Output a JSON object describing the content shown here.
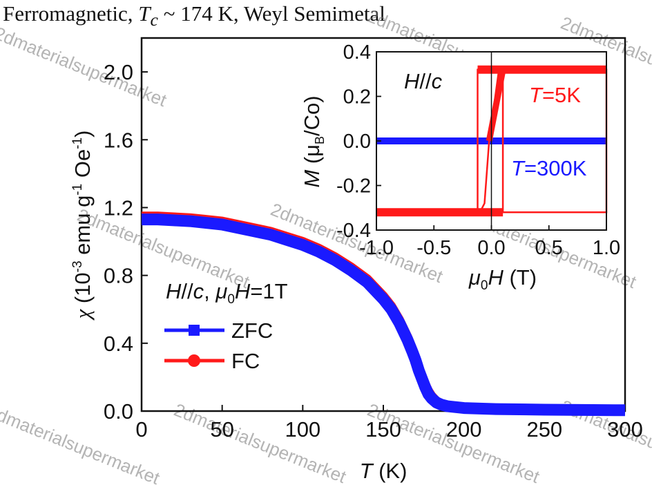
{
  "caption": {
    "prefix": "Ferromagnetic, ",
    "tc_symbol": "T",
    "tc_sub": "c",
    "suffix": " ~ 174 K, Weyl Semimetal"
  },
  "watermark": "2dmaterialsupermarket",
  "colors": {
    "zfc": "#1a1aff",
    "fc": "#ff1a1a",
    "axis": "#111111"
  },
  "chart_data": [
    {
      "type": "line",
      "xlabel": {
        "symbol": "T",
        "unit": " (K)"
      },
      "ylabel": {
        "symbol": "χ",
        "text_a": " (10",
        "exp_a": "-3",
        "text_b": " emu g",
        "exp_b": "-1",
        "text_c": " Oe",
        "exp_c": "-1",
        "text_d": ")"
      },
      "xlim": [
        0,
        300
      ],
      "ylim": [
        0,
        2.2
      ],
      "xticks": [
        "0",
        "50",
        "100",
        "150",
        "200",
        "250",
        "300"
      ],
      "yticks": [
        "0.0",
        "0.4",
        "0.8",
        "1.2",
        "1.6",
        "2.0"
      ],
      "annotation": {
        "h": "H",
        "sep": "//",
        "c": "c",
        "comma": ", ",
        "mu": "μ",
        "zero": "0",
        "h2": "H",
        "value": "=1T"
      },
      "legend_position": "left-center",
      "series": [
        {
          "name": "ZFC",
          "marker": "square",
          "x": [
            0,
            10,
            20,
            30,
            40,
            50,
            60,
            70,
            80,
            90,
            100,
            110,
            120,
            130,
            140,
            150,
            155,
            160,
            165,
            168,
            170,
            172,
            174,
            176,
            178,
            180,
            183,
            186,
            190,
            200,
            220,
            250,
            280,
            300
          ],
          "y": [
            1.13,
            1.13,
            1.125,
            1.12,
            1.11,
            1.1,
            1.08,
            1.06,
            1.04,
            1.01,
            0.98,
            0.94,
            0.89,
            0.83,
            0.76,
            0.66,
            0.6,
            0.52,
            0.42,
            0.35,
            0.3,
            0.24,
            0.19,
            0.14,
            0.1,
            0.075,
            0.05,
            0.038,
            0.028,
            0.018,
            0.012,
            0.008,
            0.006,
            0.005
          ]
        },
        {
          "name": "FC",
          "marker": "circle",
          "x": [
            0,
            10,
            20,
            30,
            40,
            50,
            60,
            70,
            80,
            90,
            100,
            110,
            120,
            130,
            140,
            150,
            155,
            160,
            165,
            168,
            170,
            172,
            174,
            176,
            178,
            180,
            183,
            186,
            190,
            200,
            220,
            250,
            280,
            300
          ],
          "y": [
            1.15,
            1.15,
            1.145,
            1.14,
            1.13,
            1.12,
            1.1,
            1.08,
            1.06,
            1.03,
            1.0,
            0.96,
            0.91,
            0.85,
            0.78,
            0.68,
            0.62,
            0.54,
            0.44,
            0.37,
            0.32,
            0.26,
            0.21,
            0.16,
            0.12,
            0.09,
            0.06,
            0.045,
            0.034,
            0.022,
            0.015,
            0.011,
            0.009,
            0.008
          ]
        }
      ]
    },
    {
      "type": "line",
      "xlabel": {
        "mu": "μ",
        "zero": "0",
        "symbol": "H",
        "unit": " (T)"
      },
      "ylabel": {
        "symbol": "M",
        "open": " (μ",
        "sub": "B",
        "close": "/Co)"
      },
      "xlim": [
        -1.0,
        1.0
      ],
      "ylim": [
        -0.4,
        0.4
      ],
      "xticks": [
        "-1.0",
        "-0.5",
        "0.0",
        "0.5",
        "1.0"
      ],
      "yticks": [
        "-0.4",
        "-0.2",
        "0.0",
        "0.2",
        "0.4"
      ],
      "annotation": {
        "h": "H",
        "sep": "//",
        "c": "c"
      },
      "series": [
        {
          "name_t": "T",
          "name_val": "=5K",
          "x": [
            -1.0,
            -0.12,
            -0.12,
            0.1,
            0.1,
            1.0,
            1.0,
            0.1,
            0.06,
            -0.02,
            -0.06,
            -0.1,
            -1.0
          ],
          "y": [
            -0.32,
            -0.32,
            0.32,
            0.32,
            -0.32,
            -0.32,
            0.32,
            0.32,
            0.3,
            0.0,
            -0.28,
            -0.32,
            -0.32
          ]
        },
        {
          "name_t": "T",
          "name_val": "=300K",
          "x": [
            -1.0,
            1.0
          ],
          "y": [
            0.0,
            0.0
          ]
        }
      ]
    }
  ]
}
